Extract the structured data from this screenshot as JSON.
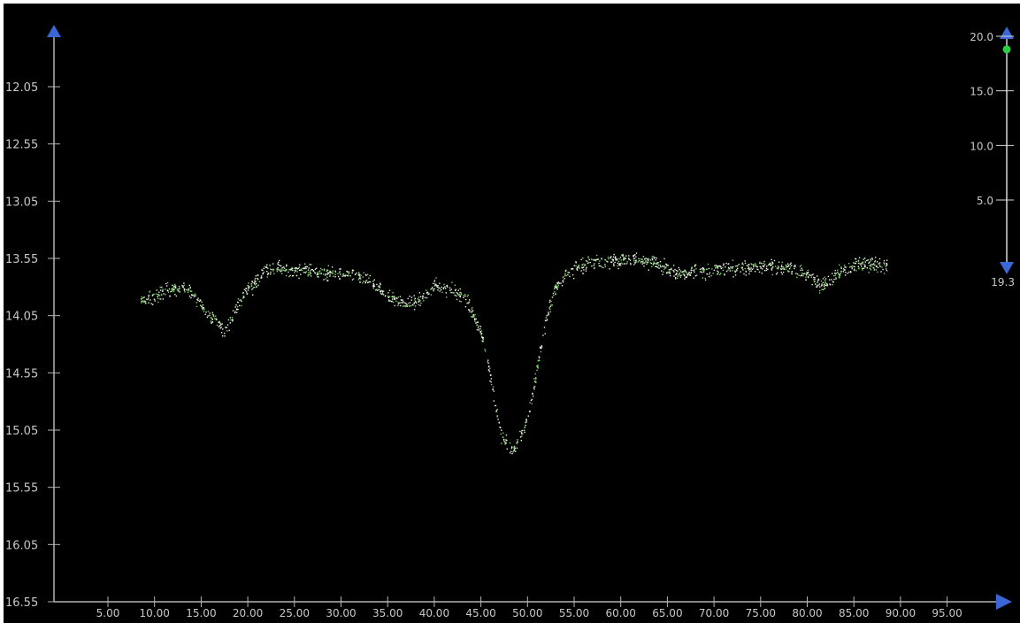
{
  "chart_data": {
    "type": "scatter",
    "title": "",
    "xlabel": "",
    "ylabel": "",
    "y_inverted": true,
    "xlim": [
      0,
      97.5
    ],
    "ylim": [
      16.55,
      11.65
    ],
    "x_ticks": [
      "5.00",
      "10.00",
      "15.00",
      "20.00",
      "25.00",
      "30.00",
      "35.00",
      "40.00",
      "45.00",
      "50.00",
      "55.00",
      "60.00",
      "65.00",
      "70.00",
      "75.00",
      "80.00",
      "85.00",
      "90.00",
      "95.00"
    ],
    "y_ticks": [
      "12.05",
      "12.55",
      "13.05",
      "13.55",
      "14.05",
      "14.55",
      "15.05",
      "15.55",
      "16.05",
      "16.55"
    ],
    "point_colors": [
      "#e8f5e0",
      "#7fd46a"
    ],
    "background": "#000000",
    "axis_color": "#b4b4b4",
    "grid": false,
    "curve": [
      [
        8.5,
        13.92
      ],
      [
        10,
        13.88
      ],
      [
        12,
        13.8
      ],
      [
        13.5,
        13.82
      ],
      [
        15,
        13.95
      ],
      [
        16.5,
        14.1
      ],
      [
        17.5,
        14.18
      ],
      [
        18.5,
        14.02
      ],
      [
        20,
        13.82
      ],
      [
        21.5,
        13.68
      ],
      [
        23,
        13.62
      ],
      [
        25,
        13.65
      ],
      [
        27,
        13.66
      ],
      [
        29,
        13.67
      ],
      [
        31,
        13.68
      ],
      [
        33,
        13.75
      ],
      [
        35,
        13.88
      ],
      [
        37,
        13.95
      ],
      [
        38.5,
        13.9
      ],
      [
        40,
        13.78
      ],
      [
        42,
        13.82
      ],
      [
        43.5,
        13.92
      ],
      [
        45,
        14.2
      ],
      [
        46,
        14.6
      ],
      [
        47,
        15.05
      ],
      [
        48,
        15.22
      ],
      [
        49,
        15.15
      ],
      [
        50,
        14.95
      ],
      [
        51,
        14.5
      ],
      [
        52,
        14.05
      ],
      [
        53,
        13.8
      ],
      [
        54,
        13.68
      ],
      [
        55.5,
        13.62
      ],
      [
        57.5,
        13.58
      ],
      [
        59.5,
        13.56
      ],
      [
        61.5,
        13.55
      ],
      [
        63.5,
        13.58
      ],
      [
        65,
        13.65
      ],
      [
        66.5,
        13.68
      ],
      [
        68,
        13.66
      ],
      [
        70,
        13.65
      ],
      [
        72,
        13.63
      ],
      [
        74,
        13.62
      ],
      [
        76,
        13.62
      ],
      [
        78,
        13.64
      ],
      [
        80,
        13.7
      ],
      [
        81.5,
        13.78
      ],
      [
        83,
        13.7
      ],
      [
        85,
        13.6
      ],
      [
        87,
        13.6
      ],
      [
        88.5,
        13.62
      ]
    ],
    "scatter_band": 0.06
  },
  "y2_axis": {
    "ticks": [
      "20.0",
      "15.0",
      "10.0",
      "5.0"
    ],
    "bottom_label": "19.3",
    "slider_color": "#2ecc40",
    "range": [
      0,
      20
    ],
    "marker_value": 18.8
  }
}
